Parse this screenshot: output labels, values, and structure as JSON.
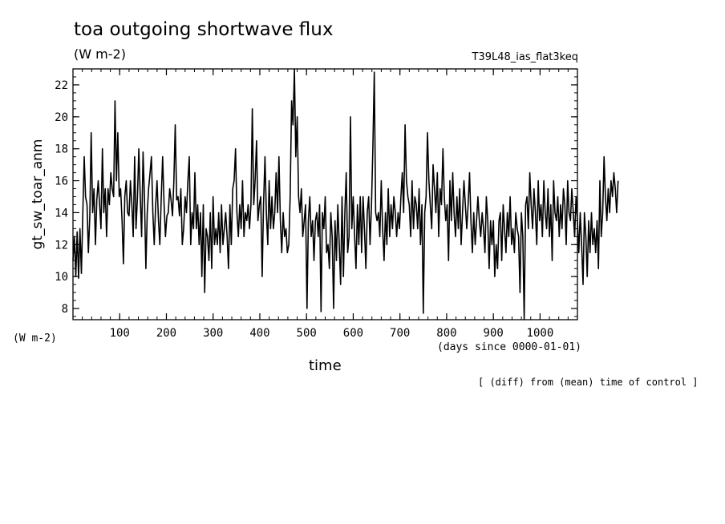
{
  "chart_data": {
    "type": "line",
    "title": "toa outgoing shortwave flux",
    "units": "(W m-2)",
    "run_id": "T39L48_ias_flat3keq",
    "ylabel": "gt_sw_toar_anm",
    "y_units": "(W m-2)",
    "xlabel": "time",
    "x_units": "(days since 0000-01-01)",
    "footnote": "[ (diff) from (mean) time of control ]",
    "xlim": [
      0,
      1080
    ],
    "ylim": [
      7.3,
      23.0
    ],
    "x_ticks": [
      100,
      200,
      300,
      400,
      500,
      600,
      700,
      800,
      900,
      1000
    ],
    "y_ticks": [
      8,
      10,
      12,
      14,
      16,
      18,
      20,
      22
    ],
    "x_step": 3,
    "series": [
      {
        "values": [
          11.0,
          12.5,
          10.0,
          12.8,
          9.9,
          13.0,
          10.2,
          13.8,
          17.5,
          15.0,
          14.5,
          11.5,
          13.8,
          19.0,
          14.0,
          15.5,
          12.0,
          14.8,
          16.0,
          14.5,
          13.0,
          18.0,
          14.0,
          15.5,
          12.5,
          15.5,
          14.5,
          16.5,
          15.5,
          15.0,
          21.0,
          16.0,
          19.0,
          15.0,
          15.5,
          13.5,
          10.8,
          15.0,
          16.0,
          14.0,
          13.8,
          16.0,
          14.5,
          12.5,
          17.5,
          13.0,
          15.0,
          18.0,
          15.0,
          12.5,
          17.8,
          15.0,
          10.5,
          14.0,
          15.5,
          16.5,
          17.5,
          14.0,
          12.0,
          14.5,
          16.0,
          13.5,
          12.0,
          15.0,
          17.5,
          14.5,
          12.5,
          13.8,
          14.0,
          15.5,
          14.8,
          13.8,
          16.0,
          19.5,
          14.8,
          15.0,
          13.8,
          15.5,
          12.0,
          13.0,
          15.0,
          14.0,
          16.0,
          17.5,
          12.0,
          14.0,
          13.0,
          16.5,
          13.0,
          14.5,
          12.0,
          14.0,
          10.0,
          14.5,
          9.0,
          13.0,
          12.5,
          11.0,
          14.0,
          10.5,
          15.0,
          12.0,
          13.0,
          12.0,
          14.0,
          11.5,
          14.5,
          12.0,
          13.0,
          14.0,
          12.5,
          10.5,
          14.5,
          12.0,
          15.5,
          16.0,
          18.0,
          14.0,
          12.5,
          14.5,
          13.0,
          16.0,
          12.5,
          14.0,
          13.5,
          14.5,
          13.0,
          14.5,
          20.5,
          14.5,
          16.0,
          18.5,
          13.5,
          14.5,
          15.0,
          10.0,
          14.5,
          17.5,
          14.0,
          12.0,
          16.0,
          13.0,
          15.0,
          13.0,
          14.0,
          16.5,
          14.0,
          17.5,
          13.5,
          11.5,
          14.0,
          12.5,
          13.0,
          11.5,
          12.0,
          15.0,
          21.0,
          19.5,
          23.0,
          17.5,
          20.0,
          15.0,
          14.0,
          15.5,
          12.5,
          13.5,
          14.5,
          8.0,
          13.5,
          15.0,
          12.5,
          13.5,
          11.0,
          13.5,
          14.0,
          12.5,
          14.5,
          7.8,
          14.0,
          13.0,
          15.0,
          11.5,
          12.0,
          10.5,
          14.0,
          12.5,
          8.0,
          13.5,
          11.0,
          14.5,
          12.0,
          9.5,
          15.0,
          10.0,
          14.0,
          16.5,
          11.5,
          12.5,
          20.0,
          13.0,
          15.0,
          12.5,
          10.5,
          14.5,
          12.0,
          15.0,
          11.5,
          15.0,
          13.0,
          10.5,
          14.0,
          15.0,
          12.0,
          14.5,
          18.0,
          22.8,
          14.0,
          13.5,
          14.0,
          12.5,
          16.0,
          13.0,
          11.0,
          14.0,
          12.0,
          15.5,
          12.5,
          14.5,
          13.0,
          15.0,
          14.0,
          12.5,
          14.0,
          13.0,
          15.0,
          16.5,
          14.0,
          19.5,
          16.0,
          15.0,
          14.5,
          12.5,
          16.0,
          13.0,
          15.0,
          14.5,
          13.0,
          15.5,
          12.0,
          14.5,
          7.7,
          14.0,
          15.0,
          19.0,
          16.0,
          14.5,
          13.0,
          17.0,
          15.5,
          14.0,
          16.5,
          12.5,
          15.5,
          14.5,
          18.0,
          15.0,
          13.5,
          14.5,
          11.0,
          16.0,
          13.5,
          16.5,
          14.0,
          12.5,
          15.0,
          13.0,
          15.5,
          12.0,
          14.0,
          16.0,
          14.5,
          13.0,
          14.5,
          16.5,
          13.5,
          11.5,
          14.0,
          12.0,
          13.5,
          15.0,
          13.5,
          12.5,
          14.0,
          13.0,
          11.5,
          15.0,
          13.5,
          10.5,
          13.5,
          12.0,
          13.5,
          10.0,
          12.0,
          10.5,
          13.5,
          14.0,
          11.0,
          14.5,
          13.0,
          11.5,
          14.0,
          12.5,
          15.0,
          12.0,
          13.0,
          11.5,
          14.0,
          13.0,
          12.5,
          9.0,
          14.0,
          12.5,
          7.3,
          14.5,
          15.0,
          13.0,
          16.5,
          14.5,
          13.0,
          15.5,
          14.0,
          12.0,
          16.0,
          13.5,
          14.5,
          12.5,
          16.0,
          14.0,
          13.0,
          15.5,
          12.5,
          14.5,
          11.0,
          16.0,
          14.0,
          13.5,
          15.0,
          12.5,
          14.5,
          13.0,
          15.5,
          14.5,
          12.0,
          16.0,
          14.0,
          13.5,
          15.5,
          14.0,
          12.5,
          15.0,
          13.5,
          11.5,
          14.0,
          12.0,
          9.5,
          14.0,
          12.5,
          10.0,
          13.5,
          11.5,
          14.0,
          12.0,
          13.0,
          11.5,
          13.5,
          10.5,
          16.0,
          12.5,
          14.0,
          17.5,
          15.0,
          13.5,
          15.5,
          14.0,
          16.0,
          15.0,
          16.5,
          15.5,
          14.0,
          16.0
        ]
      }
    ]
  }
}
